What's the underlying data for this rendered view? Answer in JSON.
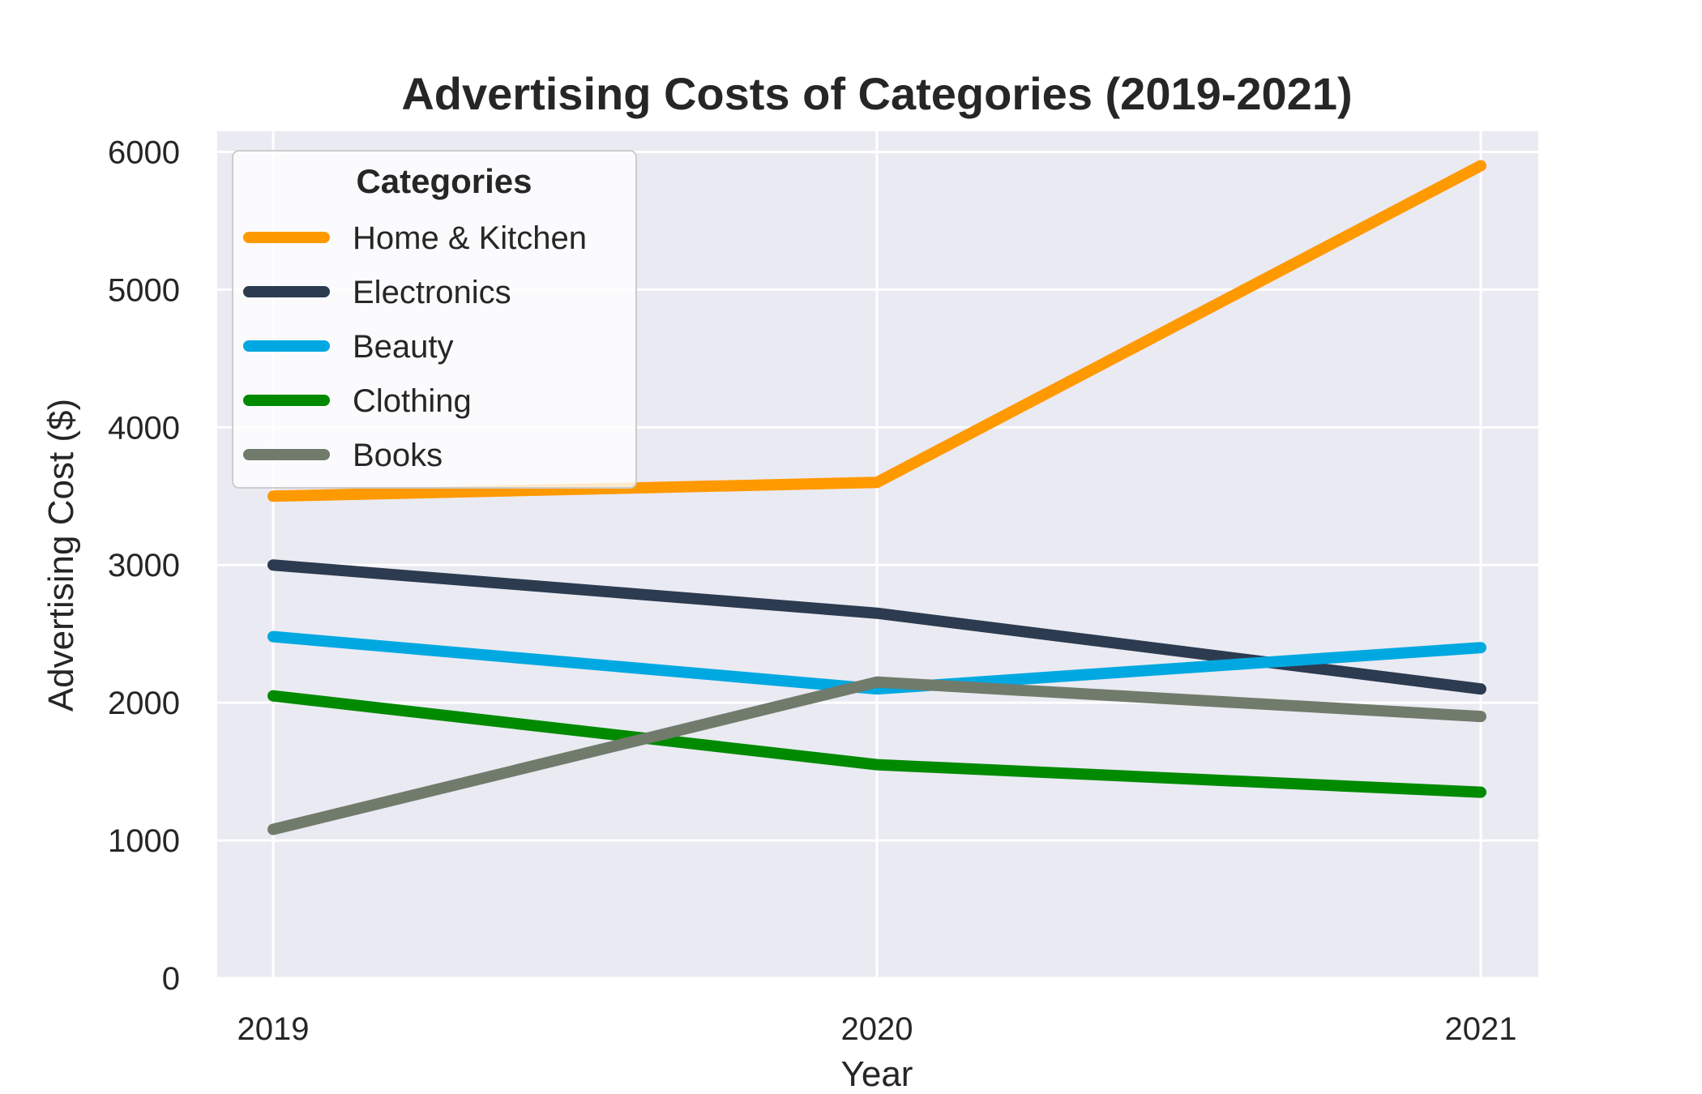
{
  "chart_data": {
    "type": "line",
    "title": "Advertising Costs of Categories (2019-2021)",
    "xlabel": "Year",
    "ylabel": "Advertising Cost ($)",
    "x": [
      "2019",
      "2020",
      "2021"
    ],
    "y_ticks": [
      "0",
      "1000",
      "2000",
      "3000",
      "4000",
      "5000",
      "6000"
    ],
    "ylim": [
      0,
      6150
    ],
    "grid": true,
    "legend": {
      "title": "Categories",
      "placement": "top-left"
    },
    "series": [
      {
        "name": "Home & Kitchen",
        "color": "#ff9900",
        "values": [
          3500,
          3600,
          5900
        ]
      },
      {
        "name": "Electronics",
        "color": "#2c3b50",
        "values": [
          3000,
          2650,
          2100
        ]
      },
      {
        "name": "Beauty",
        "color": "#00a8e1",
        "values": [
          2480,
          2100,
          2400
        ]
      },
      {
        "name": "Clothing",
        "color": "#008a00",
        "values": [
          2050,
          1550,
          1350
        ]
      },
      {
        "name": "Books",
        "color": "#717b6c",
        "values": [
          1080,
          2150,
          1900
        ]
      }
    ]
  }
}
